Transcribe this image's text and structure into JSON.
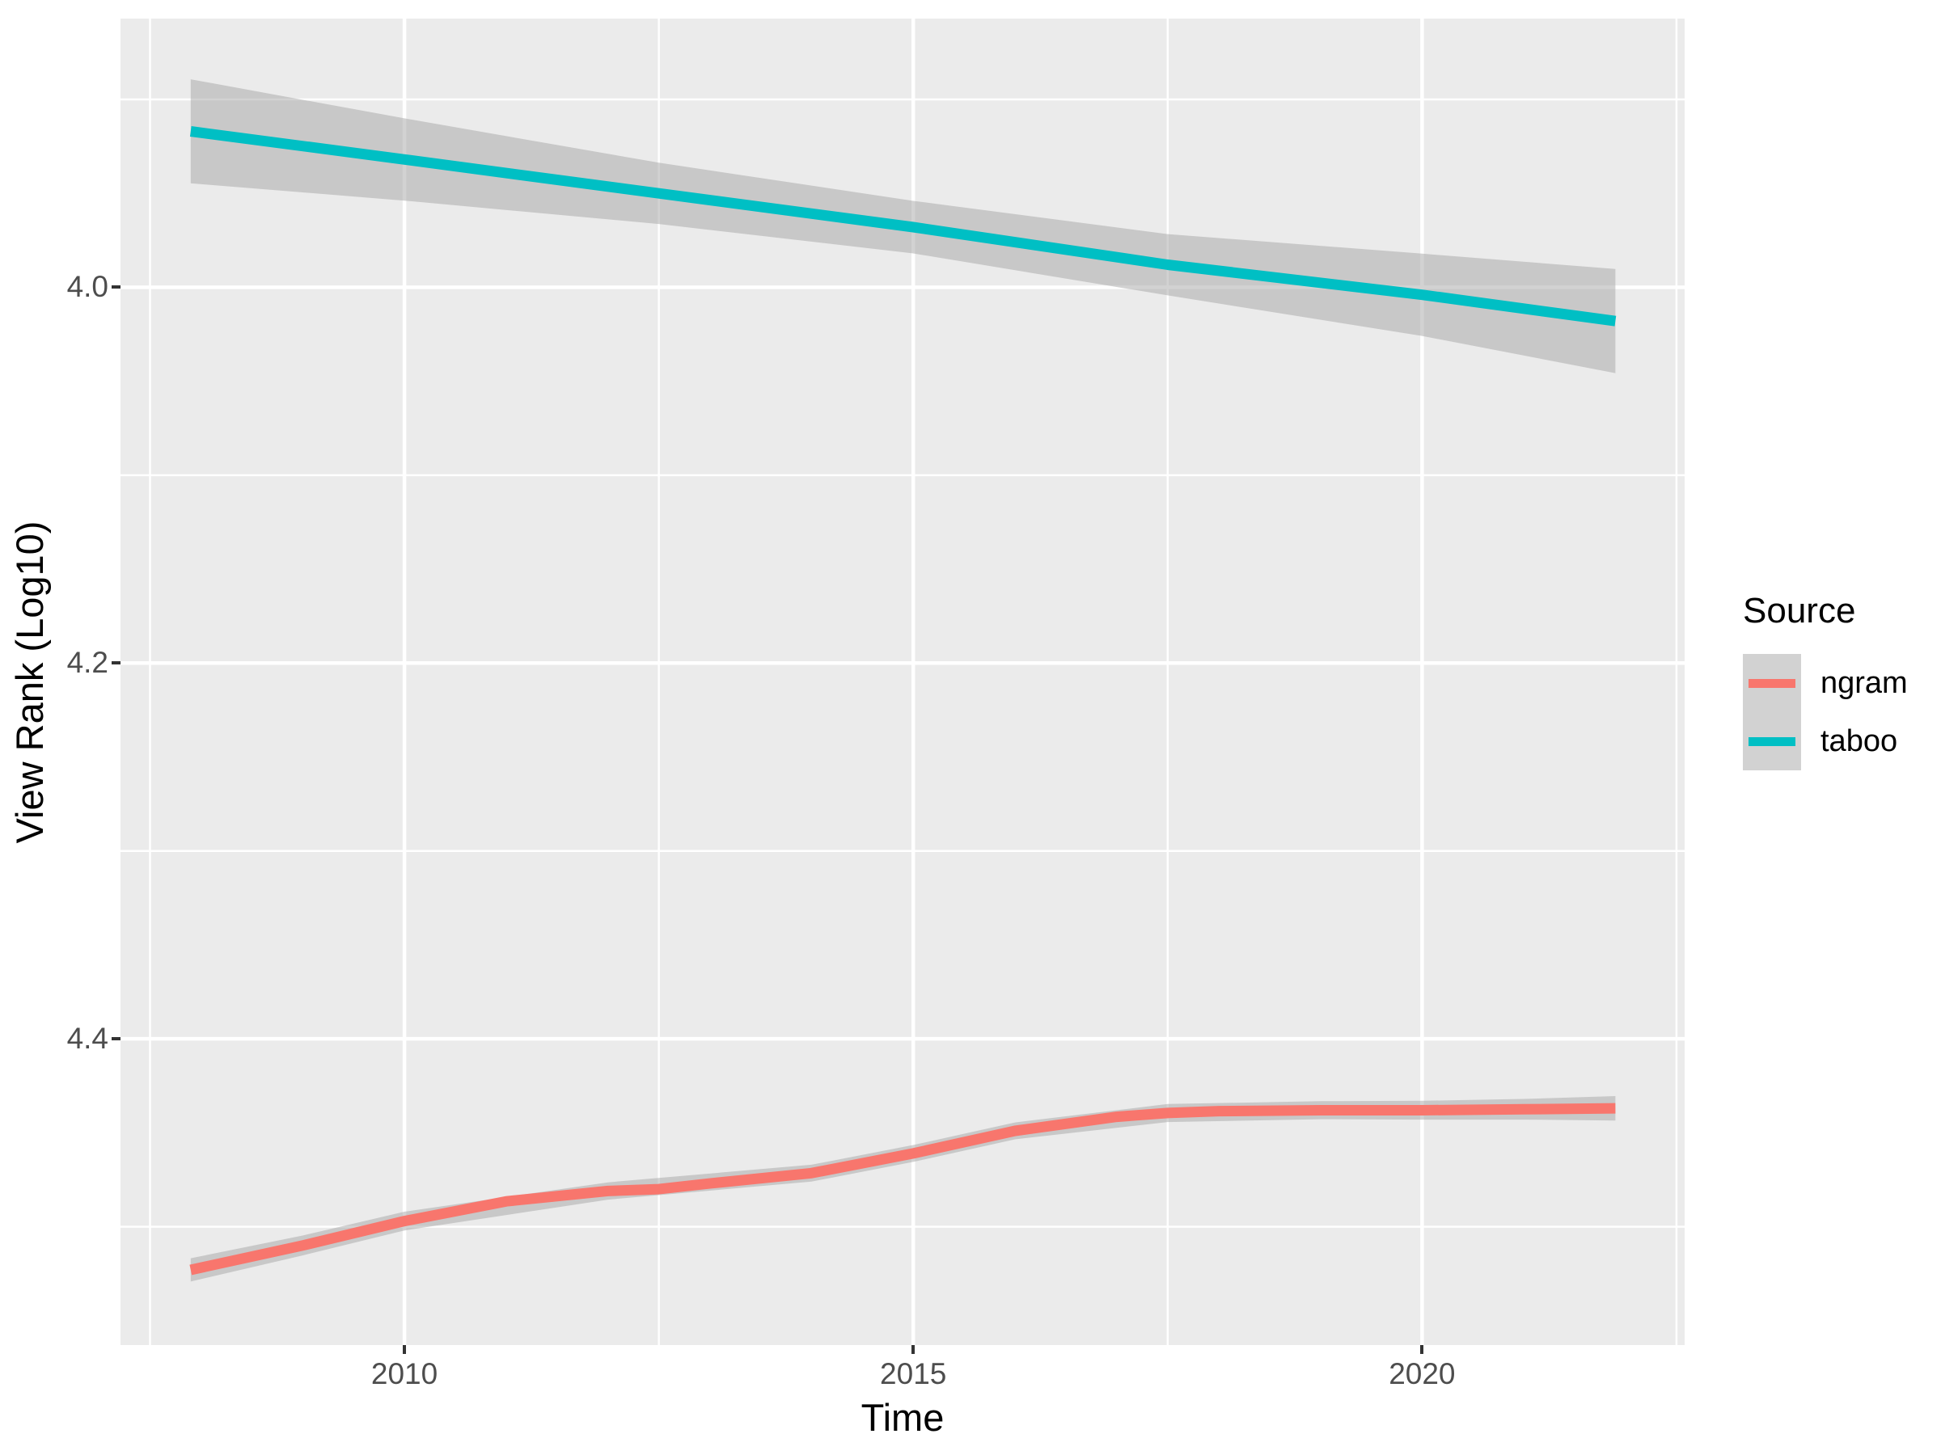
{
  "chart_data": {
    "type": "line",
    "title": "",
    "xlabel": "Time",
    "ylabel": "View Rank (Log10)",
    "x_domain": [
      2007.21,
      2022.58
    ],
    "y_domain": [
      3.857,
      4.563
    ],
    "y_reversed": true,
    "grid": true,
    "panel_bg": "#EBEBEB",
    "grid_color": "#FFFFFF",
    "ribbon_fill": "rgba(165,165,165,0.5)",
    "tick_label_color": "#4D4D4D",
    "x_ticks": [
      2010,
      2015,
      2020
    ],
    "x_tick_labels": [
      "2010",
      "2015",
      "2020"
    ],
    "x_minor": [
      2007.5,
      2012.5,
      2017.5,
      2022.5
    ],
    "y_ticks": [
      4.0,
      4.2,
      4.4
    ],
    "y_tick_labels": [
      "4.0",
      "4.2",
      "4.4"
    ],
    "y_minor": [
      3.9,
      4.1,
      4.3,
      4.5
    ],
    "legend": {
      "title": "Source",
      "position": "right"
    },
    "series": [
      {
        "name": "ngram",
        "color": "#F8766D",
        "smoothed": true,
        "points": [
          [
            2007.9,
            4.523
          ],
          [
            2009.0,
            4.51
          ],
          [
            2010.0,
            4.497
          ],
          [
            2011.0,
            4.4865
          ],
          [
            2012.0,
            4.481
          ],
          [
            2012.5,
            4.48
          ],
          [
            2013.0,
            4.477
          ],
          [
            2014.0,
            4.4715
          ],
          [
            2015.0,
            4.461
          ],
          [
            2016.0,
            4.449
          ],
          [
            2017.0,
            4.4415
          ],
          [
            2017.5,
            4.4395
          ],
          [
            2018.0,
            4.4385
          ],
          [
            2019.0,
            4.438
          ],
          [
            2020.0,
            4.438
          ],
          [
            2021.0,
            4.4375
          ],
          [
            2021.9,
            4.437
          ]
        ],
        "ribbon": [
          [
            2007.9,
            4.5168,
            4.5292
          ],
          [
            2009.0,
            4.5047,
            4.5153
          ],
          [
            2010.0,
            4.492,
            4.502
          ],
          [
            2012.0,
            4.4764,
            4.4856
          ],
          [
            2014.0,
            4.467,
            4.476
          ],
          [
            2015.0,
            4.4565,
            4.4655
          ],
          [
            2016.0,
            4.4445,
            4.4535
          ],
          [
            2017.5,
            4.4347,
            4.4443
          ],
          [
            2019.0,
            4.4332,
            4.4428
          ],
          [
            2020.0,
            4.433,
            4.443
          ],
          [
            2021.0,
            4.432,
            4.443
          ],
          [
            2021.9,
            4.4305,
            4.4435
          ]
        ]
      },
      {
        "name": "taboo",
        "color": "#00BFC4",
        "smoothed": true,
        "points": [
          [
            2007.9,
            3.917
          ],
          [
            2010.0,
            3.932
          ],
          [
            2012.5,
            3.95
          ],
          [
            2015.0,
            3.968
          ],
          [
            2017.5,
            3.988
          ],
          [
            2020.0,
            4.004
          ],
          [
            2021.9,
            4.018
          ]
        ],
        "ribbon": [
          [
            2007.9,
            3.8893,
            3.9447
          ],
          [
            2010.0,
            3.9101,
            3.9539
          ],
          [
            2012.5,
            3.9337,
            3.9663
          ],
          [
            2015.0,
            3.954,
            3.982
          ],
          [
            2017.5,
            3.9717,
            4.0043
          ],
          [
            2020.0,
            3.9821,
            4.0259
          ],
          [
            2021.9,
            3.9903,
            4.0457
          ]
        ]
      }
    ]
  }
}
